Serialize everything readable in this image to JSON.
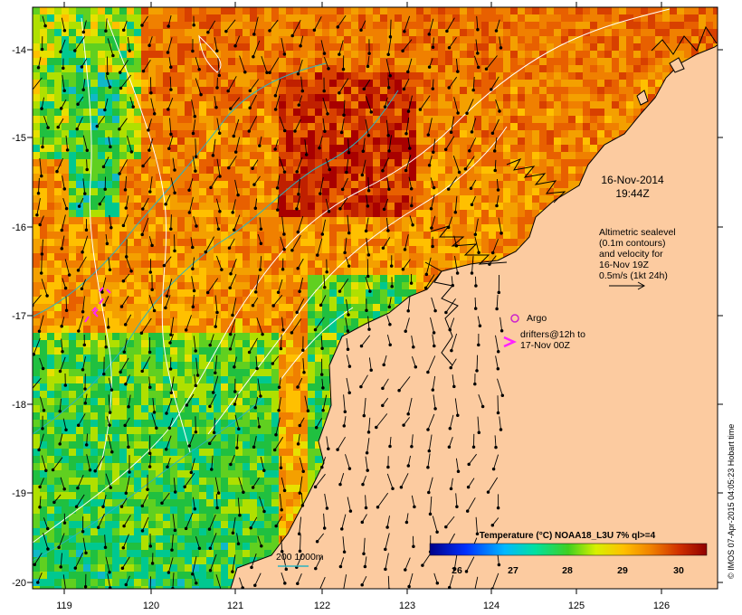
{
  "map": {
    "lon_ticks": [
      "119",
      "120",
      "121",
      "122",
      "123",
      "124",
      "125",
      "126"
    ],
    "lat_ticks": [
      "-14",
      "-15",
      "-16",
      "-17",
      "-18",
      "-19",
      "-20"
    ]
  },
  "annotations": {
    "date_line1": "16-Nov-2014",
    "date_line2": "19:44Z",
    "sealevel_lines": [
      "Altimetric sealevel",
      "(0.1m contours)",
      "and velocity for",
      "16-Nov 19Z",
      "0.5m/s (1kt 24h)"
    ],
    "argo_label": "Argo",
    "drifters_line1": "drifters@12h to",
    "drifters_line2": "17-Nov 00Z",
    "depth_label": "200  1000m"
  },
  "colorbar": {
    "title": "Temperature (°C) NOAA18_L3U 7% ql>=4",
    "ticks": [
      "26",
      "27",
      "28",
      "29",
      "30"
    ]
  },
  "credit": "© IMOS 07-Apr-2015 04:05:23 Hobart time",
  "colors": {
    "land": "#fccba0",
    "argo_marker": "#cc22cc",
    "drifter_marker": "#ff22ff",
    "contour_200": "#2bb3c0",
    "contour_sealevel": "#ffffff"
  }
}
